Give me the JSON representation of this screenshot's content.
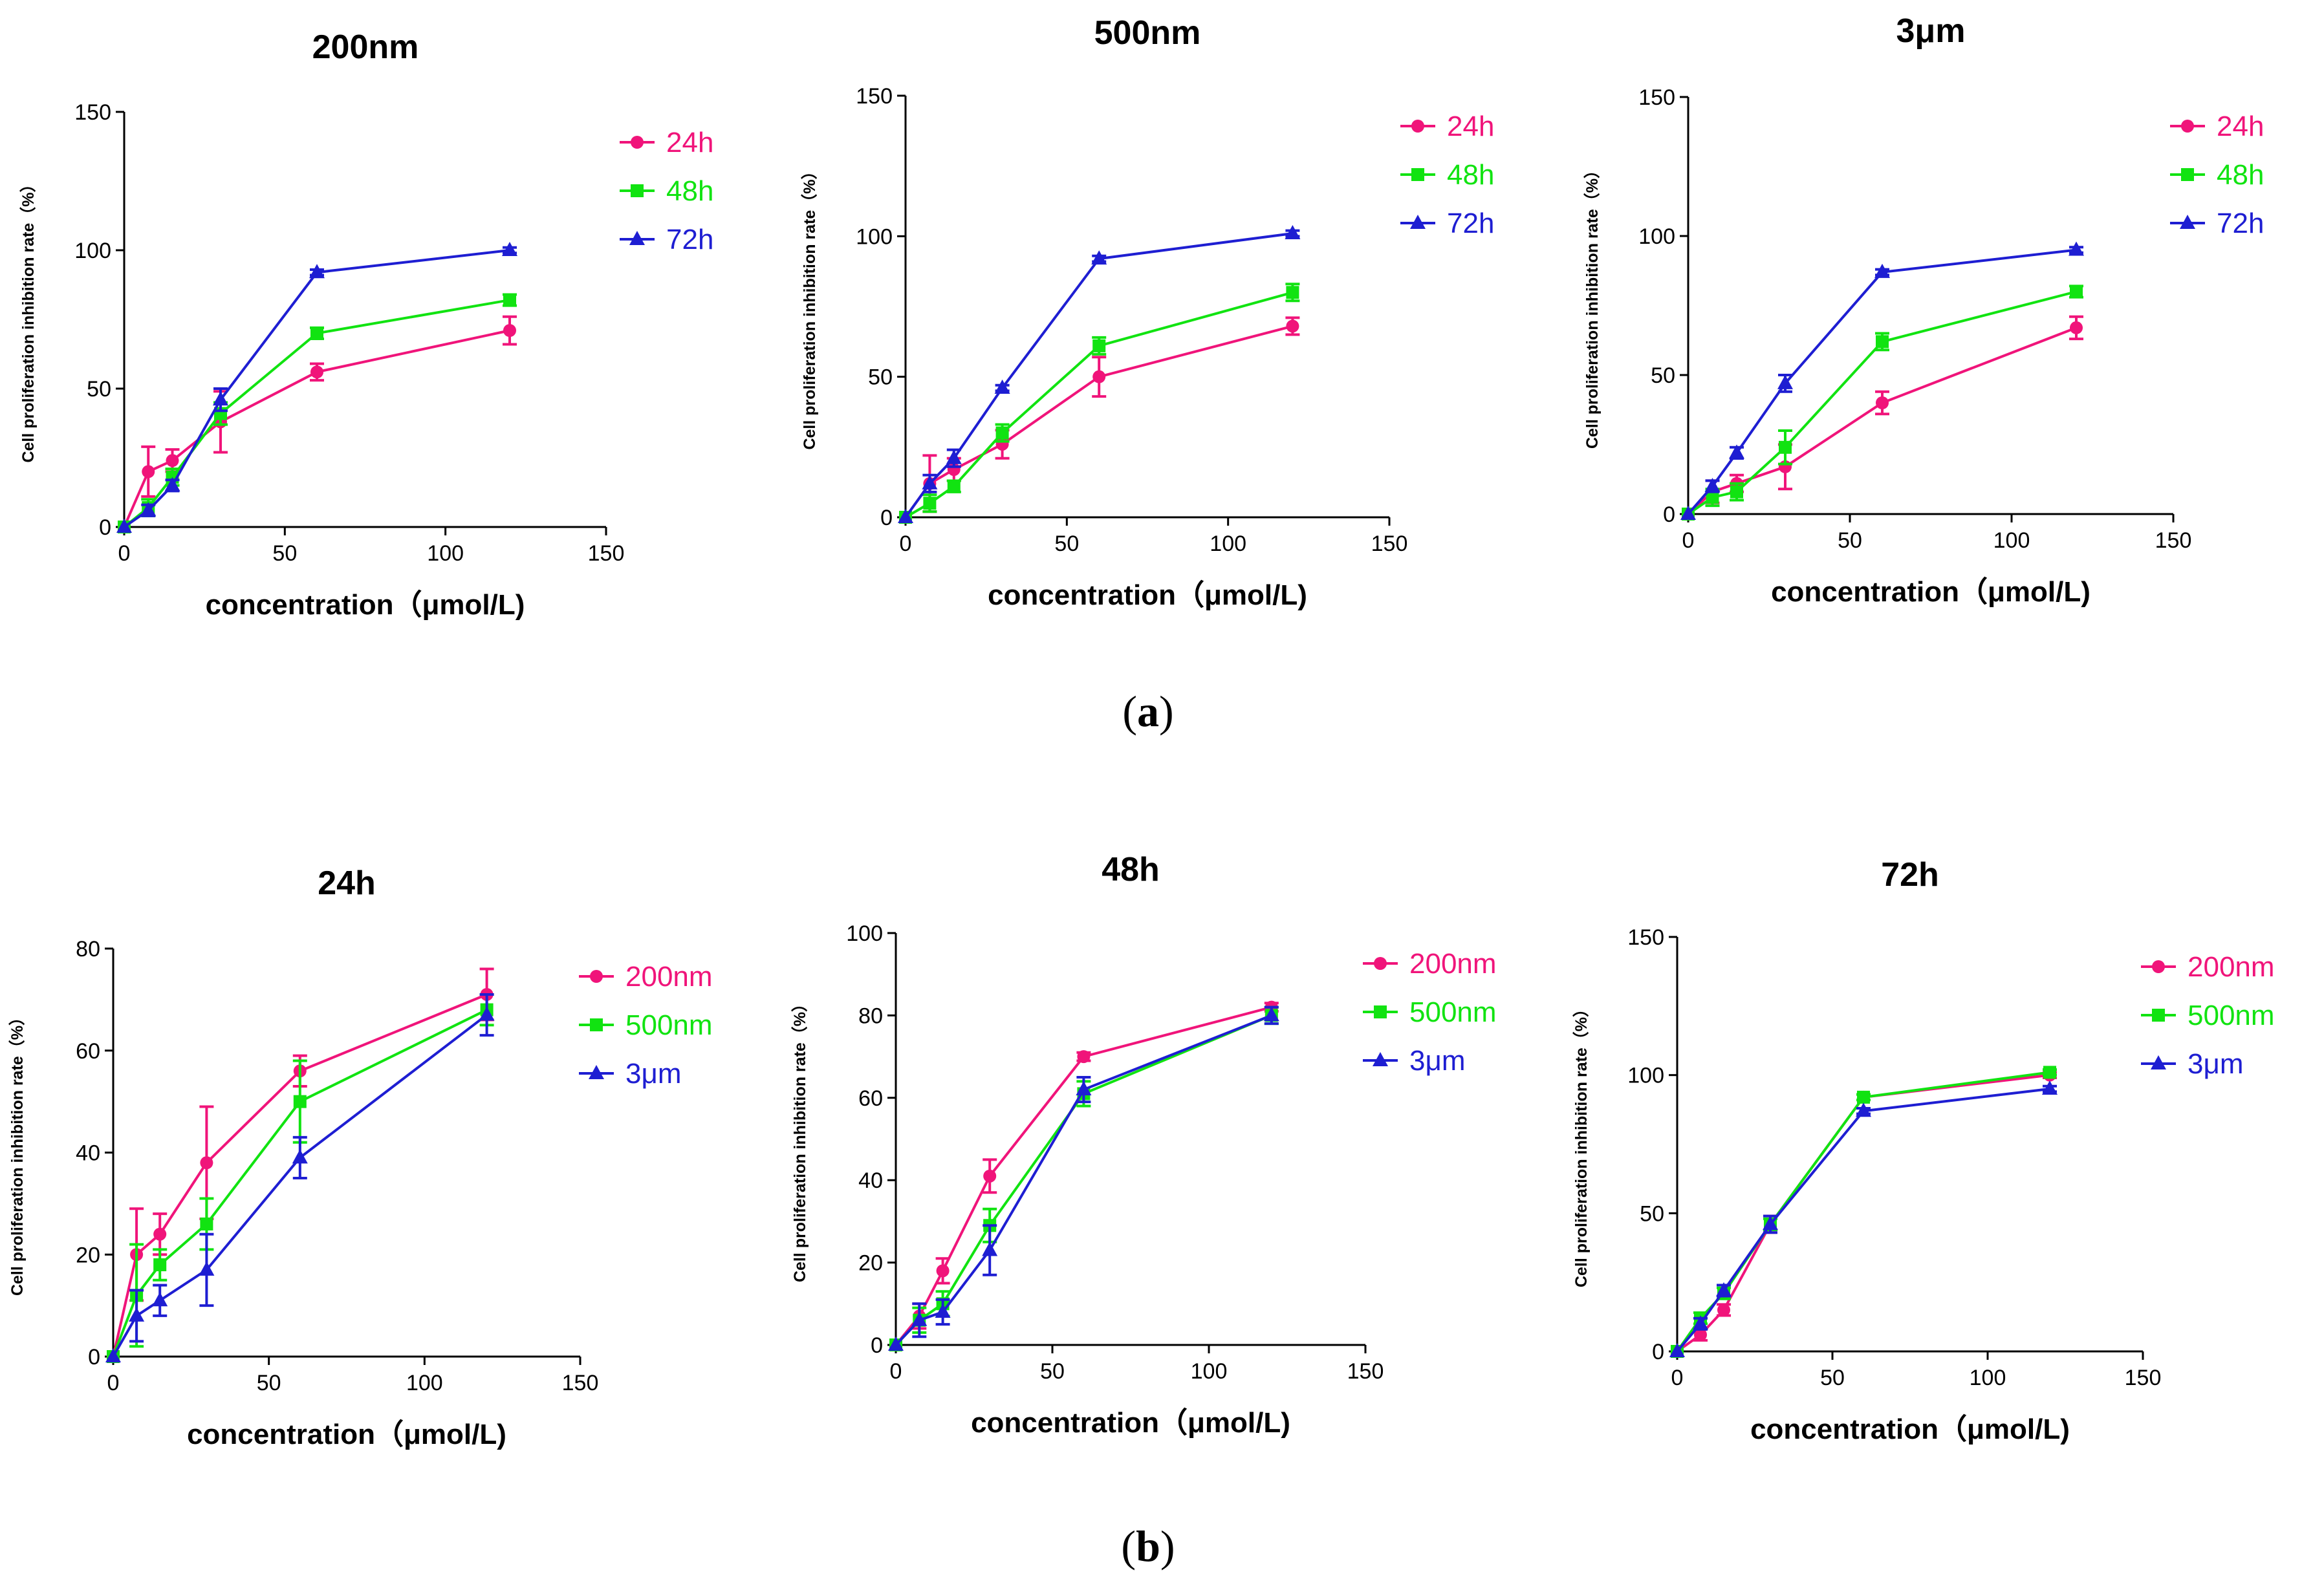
{
  "figure_labels": [
    {
      "open": "(",
      "letter": "a",
      "close": ")"
    },
    {
      "open": "(",
      "letter": "b",
      "close": ")"
    }
  ],
  "colors": {
    "pink": "#f0147a",
    "green": "#11e311",
    "blue": "#1e1ed2"
  },
  "chart_data": [
    {
      "type": "line",
      "title": "200nm",
      "xlabel": "concentration（μmol/L)",
      "ylabel": "Cell proliferation inhibition rate（%）",
      "xlim": [
        0,
        150
      ],
      "ylim": [
        0,
        150
      ],
      "x_ticks": [
        "0",
        "50",
        "100",
        "150"
      ],
      "y_ticks": [
        "0",
        "50",
        "100",
        "150"
      ],
      "x": [
        0,
        7.5,
        15,
        30,
        60,
        120
      ],
      "series": [
        {
          "name": "24h",
          "color": "#f0147a",
          "marker": "circle",
          "values": [
            0,
            20,
            24,
            38,
            56,
            71
          ],
          "errors": [
            0,
            9,
            4,
            11,
            3,
            5
          ]
        },
        {
          "name": "48h",
          "color": "#11e311",
          "marker": "square",
          "values": [
            0,
            7,
            18,
            41,
            70,
            82
          ],
          "errors": [
            0,
            3,
            3,
            4,
            2,
            2
          ]
        },
        {
          "name": "72h",
          "color": "#1e1ed2",
          "marker": "triangle",
          "values": [
            0,
            6,
            15,
            46,
            92,
            100
          ],
          "errors": [
            0,
            2,
            2,
            4,
            1,
            1
          ]
        }
      ]
    },
    {
      "type": "line",
      "title": "500nm",
      "xlabel": "concentration（μmol/L)",
      "ylabel": "Cell proliferation inhibition rate（%）",
      "xlim": [
        0,
        150
      ],
      "ylim": [
        0,
        150
      ],
      "x_ticks": [
        "0",
        "50",
        "100",
        "150"
      ],
      "y_ticks": [
        "0",
        "50",
        "100",
        "150"
      ],
      "x": [
        0,
        7.5,
        15,
        30,
        60,
        120
      ],
      "series": [
        {
          "name": "24h",
          "color": "#f0147a",
          "marker": "circle",
          "values": [
            0,
            12,
            17,
            26,
            50,
            68
          ],
          "errors": [
            0,
            10,
            4,
            5,
            7,
            3
          ]
        },
        {
          "name": "48h",
          "color": "#11e311",
          "marker": "square",
          "values": [
            0,
            5,
            11,
            30,
            61,
            80
          ],
          "errors": [
            0,
            3,
            2,
            3,
            3,
            3
          ]
        },
        {
          "name": "72h",
          "color": "#1e1ed2",
          "marker": "triangle",
          "values": [
            0,
            12,
            21,
            46,
            92,
            101
          ],
          "errors": [
            0,
            3,
            3,
            1,
            1,
            1
          ]
        }
      ]
    },
    {
      "type": "line",
      "title": "3μm",
      "xlabel": "concentration（μmol/L)",
      "ylabel": "Cell proliferation inhibition rate（%）",
      "xlim": [
        0,
        150
      ],
      "ylim": [
        0,
        150
      ],
      "x_ticks": [
        "0",
        "50",
        "100",
        "150"
      ],
      "y_ticks": [
        "0",
        "50",
        "100",
        "150"
      ],
      "x": [
        0,
        7.5,
        15,
        30,
        60,
        120
      ],
      "series": [
        {
          "name": "24h",
          "color": "#f0147a",
          "marker": "circle",
          "values": [
            0,
            8,
            11,
            17,
            40,
            67
          ],
          "errors": [
            0,
            4,
            3,
            8,
            4,
            4
          ]
        },
        {
          "name": "48h",
          "color": "#11e311",
          "marker": "square",
          "values": [
            0,
            6,
            8,
            24,
            62,
            80
          ],
          "errors": [
            0,
            3,
            3,
            6,
            3,
            2
          ]
        },
        {
          "name": "72h",
          "color": "#1e1ed2",
          "marker": "triangle",
          "values": [
            0,
            10,
            22,
            47,
            87,
            95
          ],
          "errors": [
            0,
            2,
            2,
            3,
            1,
            1
          ]
        }
      ]
    },
    {
      "type": "line",
      "title": "24h",
      "xlabel": "concentration（μmol/L)",
      "ylabel": "Cell proliferation inhibition rate（%）",
      "xlim": [
        0,
        150
      ],
      "ylim": [
        0,
        80
      ],
      "x_ticks": [
        "0",
        "50",
        "100",
        "150"
      ],
      "y_ticks": [
        "0",
        "20",
        "40",
        "60",
        "80"
      ],
      "x": [
        0,
        7.5,
        15,
        30,
        60,
        120
      ],
      "series": [
        {
          "name": "200nm",
          "color": "#f0147a",
          "marker": "circle",
          "values": [
            0,
            20,
            24,
            38,
            56,
            71
          ],
          "errors": [
            0,
            9,
            4,
            11,
            3,
            5
          ]
        },
        {
          "name": "500nm",
          "color": "#11e311",
          "marker": "square",
          "values": [
            0,
            12,
            18,
            26,
            50,
            68
          ],
          "errors": [
            0,
            10,
            3,
            5,
            8,
            3
          ]
        },
        {
          "name": "3μm",
          "color": "#1e1ed2",
          "marker": "triangle",
          "values": [
            0,
            8,
            11,
            17,
            39,
            67
          ],
          "errors": [
            0,
            5,
            3,
            7,
            4,
            4
          ]
        }
      ]
    },
    {
      "type": "line",
      "title": "48h",
      "xlabel": "concentration（μmol/L)",
      "ylabel": "Cell proliferation inhibition rate（%）",
      "xlim": [
        0,
        150
      ],
      "ylim": [
        0,
        100
      ],
      "x_ticks": [
        "0",
        "50",
        "100",
        "150"
      ],
      "y_ticks": [
        "0",
        "20",
        "40",
        "60",
        "80",
        "100"
      ],
      "x": [
        0,
        7.5,
        15,
        30,
        60,
        120
      ],
      "series": [
        {
          "name": "200nm",
          "color": "#f0147a",
          "marker": "circle",
          "values": [
            0,
            7,
            18,
            41,
            70,
            82
          ],
          "errors": [
            0,
            3,
            3,
            4,
            1,
            1
          ]
        },
        {
          "name": "500nm",
          "color": "#11e311",
          "marker": "square",
          "values": [
            0,
            6,
            10,
            29,
            61,
            80
          ],
          "errors": [
            0,
            3,
            3,
            4,
            3,
            2
          ]
        },
        {
          "name": "3μm",
          "color": "#1e1ed2",
          "marker": "triangle",
          "values": [
            0,
            6,
            8,
            23,
            62,
            80
          ],
          "errors": [
            0,
            4,
            3,
            6,
            3,
            2
          ]
        }
      ]
    },
    {
      "type": "line",
      "title": "72h",
      "xlabel": "concentration（μmol/L)",
      "ylabel": "Cell proliferation inhibition rate（%）",
      "xlim": [
        0,
        150
      ],
      "ylim": [
        0,
        150
      ],
      "x_ticks": [
        "0",
        "50",
        "100",
        "150"
      ],
      "y_ticks": [
        "0",
        "50",
        "100",
        "150"
      ],
      "x": [
        0,
        7.5,
        15,
        30,
        60,
        120
      ],
      "series": [
        {
          "name": "200nm",
          "color": "#f0147a",
          "marker": "circle",
          "values": [
            0,
            6,
            15,
            46,
            92,
            100
          ],
          "errors": [
            0,
            2,
            2,
            3,
            1,
            1
          ]
        },
        {
          "name": "500nm",
          "color": "#11e311",
          "marker": "square",
          "values": [
            0,
            12,
            21,
            46,
            92,
            101
          ],
          "errors": [
            0,
            2,
            2,
            2,
            1,
            1
          ]
        },
        {
          "name": "3μm",
          "color": "#1e1ed2",
          "marker": "triangle",
          "values": [
            0,
            10,
            22,
            46,
            87,
            95
          ],
          "errors": [
            0,
            2,
            2,
            3,
            1,
            1
          ]
        }
      ]
    }
  ]
}
